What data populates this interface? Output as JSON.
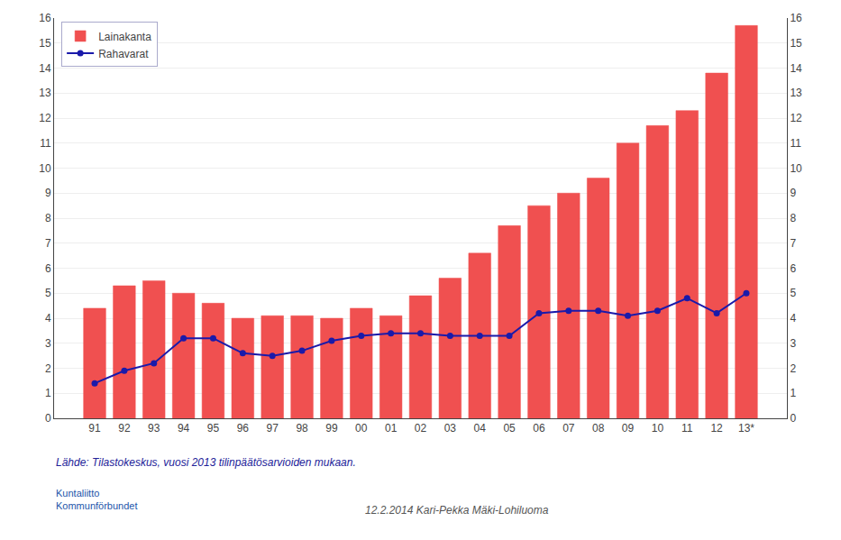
{
  "chart_data": {
    "type": "bar",
    "categories": [
      "91",
      "92",
      "93",
      "94",
      "95",
      "96",
      "97",
      "98",
      "99",
      "00",
      "01",
      "02",
      "03",
      "04",
      "05",
      "06",
      "07",
      "08",
      "09",
      "10",
      "11",
      "12",
      "13*"
    ],
    "series": [
      {
        "name": "Lainakanta",
        "type": "bar",
        "color": "#f05050",
        "values": [
          4.4,
          5.3,
          5.5,
          5.0,
          4.6,
          4.0,
          4.1,
          4.1,
          4.0,
          4.4,
          4.1,
          4.9,
          5.6,
          6.6,
          7.7,
          8.5,
          9.0,
          9.6,
          11.0,
          11.7,
          12.3,
          13.8,
          15.7
        ]
      },
      {
        "name": "Rahavarat",
        "type": "line",
        "color": "#1a1aaa",
        "marker": "circle",
        "values": [
          1.4,
          1.9,
          2.2,
          3.2,
          3.2,
          2.6,
          2.5,
          2.7,
          3.1,
          3.3,
          3.4,
          3.4,
          3.3,
          3.3,
          3.3,
          4.2,
          4.3,
          4.3,
          4.1,
          4.3,
          4.8,
          4.2,
          5.0
        ]
      }
    ],
    "ylim": [
      0,
      16
    ],
    "yticks": [
      0,
      1,
      2,
      3,
      4,
      5,
      6,
      7,
      8,
      9,
      10,
      11,
      12,
      13,
      14,
      15,
      16
    ],
    "y2lim": [
      0,
      16
    ],
    "y2ticks": [
      0,
      1,
      2,
      3,
      4,
      5,
      6,
      7,
      8,
      9,
      10,
      11,
      12,
      13,
      14,
      15,
      16
    ],
    "grid": true,
    "legend": "upper left",
    "annotations": [
      "Lähde: Tilastokeskus, vuosi 2013 tilinpäätösarvioiden mukaan.",
      "Kuntaliitto\nKommunförbundet",
      "12.2.2014 Kari-Pekka Mäki-Lohiluoma"
    ]
  }
}
